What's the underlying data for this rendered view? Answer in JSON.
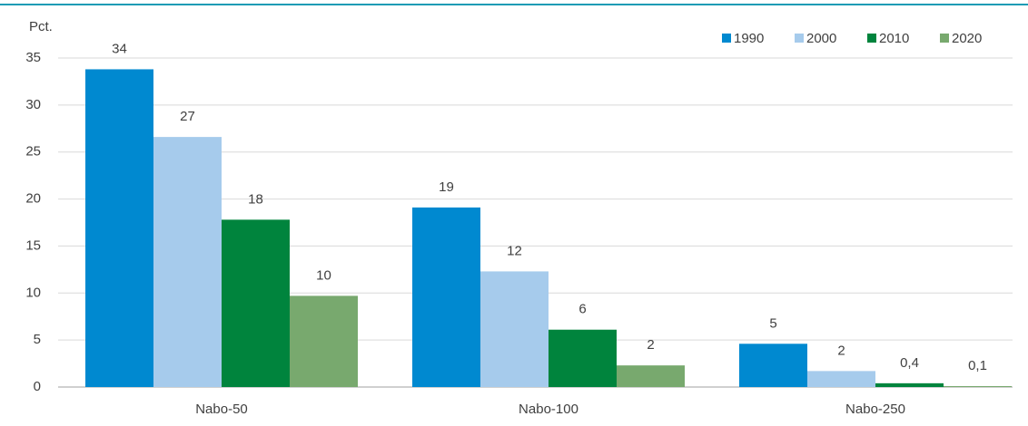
{
  "chart_data": {
    "type": "bar",
    "y_label": "Pct.",
    "categories": [
      "Nabo-50",
      "Nabo-100",
      "Nabo-250"
    ],
    "series": [
      {
        "name": "1990",
        "color": "#0089d0",
        "values": [
          33.8,
          19.1,
          4.6
        ],
        "value_labels": [
          "34",
          "19",
          "5"
        ]
      },
      {
        "name": "2000",
        "color": "#a6cbec",
        "values": [
          26.6,
          12.3,
          1.7
        ],
        "value_labels": [
          "27",
          "12",
          "2"
        ]
      },
      {
        "name": "2010",
        "color": "#00843d",
        "values": [
          17.8,
          6.1,
          0.4
        ],
        "value_labels": [
          "18",
          "6",
          "0,4"
        ]
      },
      {
        "name": "2020",
        "color": "#78a96e",
        "values": [
          9.7,
          2.3,
          0.1
        ],
        "value_labels": [
          "10",
          "2",
          "0,1"
        ]
      }
    ],
    "ylim": [
      0,
      35
    ],
    "yticks": [
      0,
      5,
      10,
      15,
      20,
      25,
      30,
      35
    ],
    "grid": true,
    "legend": "top-right"
  }
}
